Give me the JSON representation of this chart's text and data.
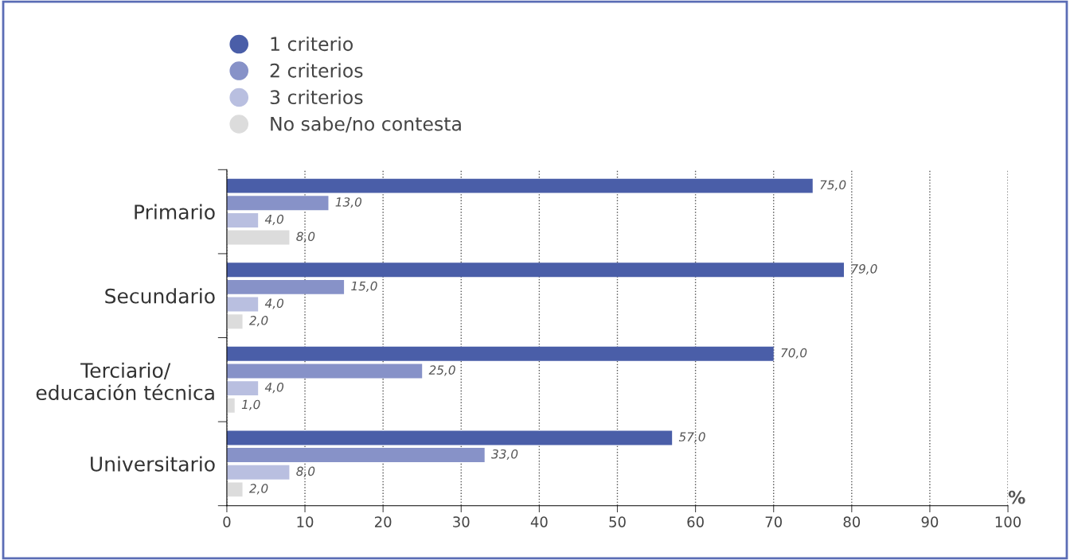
{
  "chart_data": {
    "type": "bar",
    "orientation": "horizontal",
    "xlabel": "%",
    "categories": [
      "Primario",
      "Secundario",
      "Terciario/\neducación técnica",
      "Universitario"
    ],
    "series": [
      {
        "name": "1 criterio",
        "color": "#4a5ea8",
        "values": [
          75.0,
          79.0,
          70.0,
          57.0
        ],
        "value_labels": [
          "75,0",
          "79,0",
          "70,0",
          "57,0"
        ]
      },
      {
        "name": "2 criterios",
        "color": "#8792c8",
        "values": [
          13.0,
          15.0,
          25.0,
          33.0
        ],
        "value_labels": [
          "13,0",
          "15,0",
          "25,0",
          "33,0"
        ]
      },
      {
        "name": "3 criterios",
        "color": "#b9bfe0",
        "values": [
          4.0,
          4.0,
          4.0,
          8.0
        ],
        "value_labels": [
          "4,0",
          "4,0",
          "4,0",
          "8,0"
        ]
      },
      {
        "name": "No sabe/no contesta",
        "color": "#dcdcdc",
        "values": [
          8.0,
          2.0,
          1.0,
          2.0
        ],
        "value_labels": [
          "8,0",
          "2,0",
          "1,0",
          "2,0"
        ]
      }
    ],
    "xlim": [
      0,
      100
    ],
    "xticks": [
      0,
      10,
      20,
      30,
      40,
      50,
      60,
      70,
      80,
      90,
      100
    ],
    "grid": "x",
    "legend": "top left",
    "marker": "circle"
  }
}
